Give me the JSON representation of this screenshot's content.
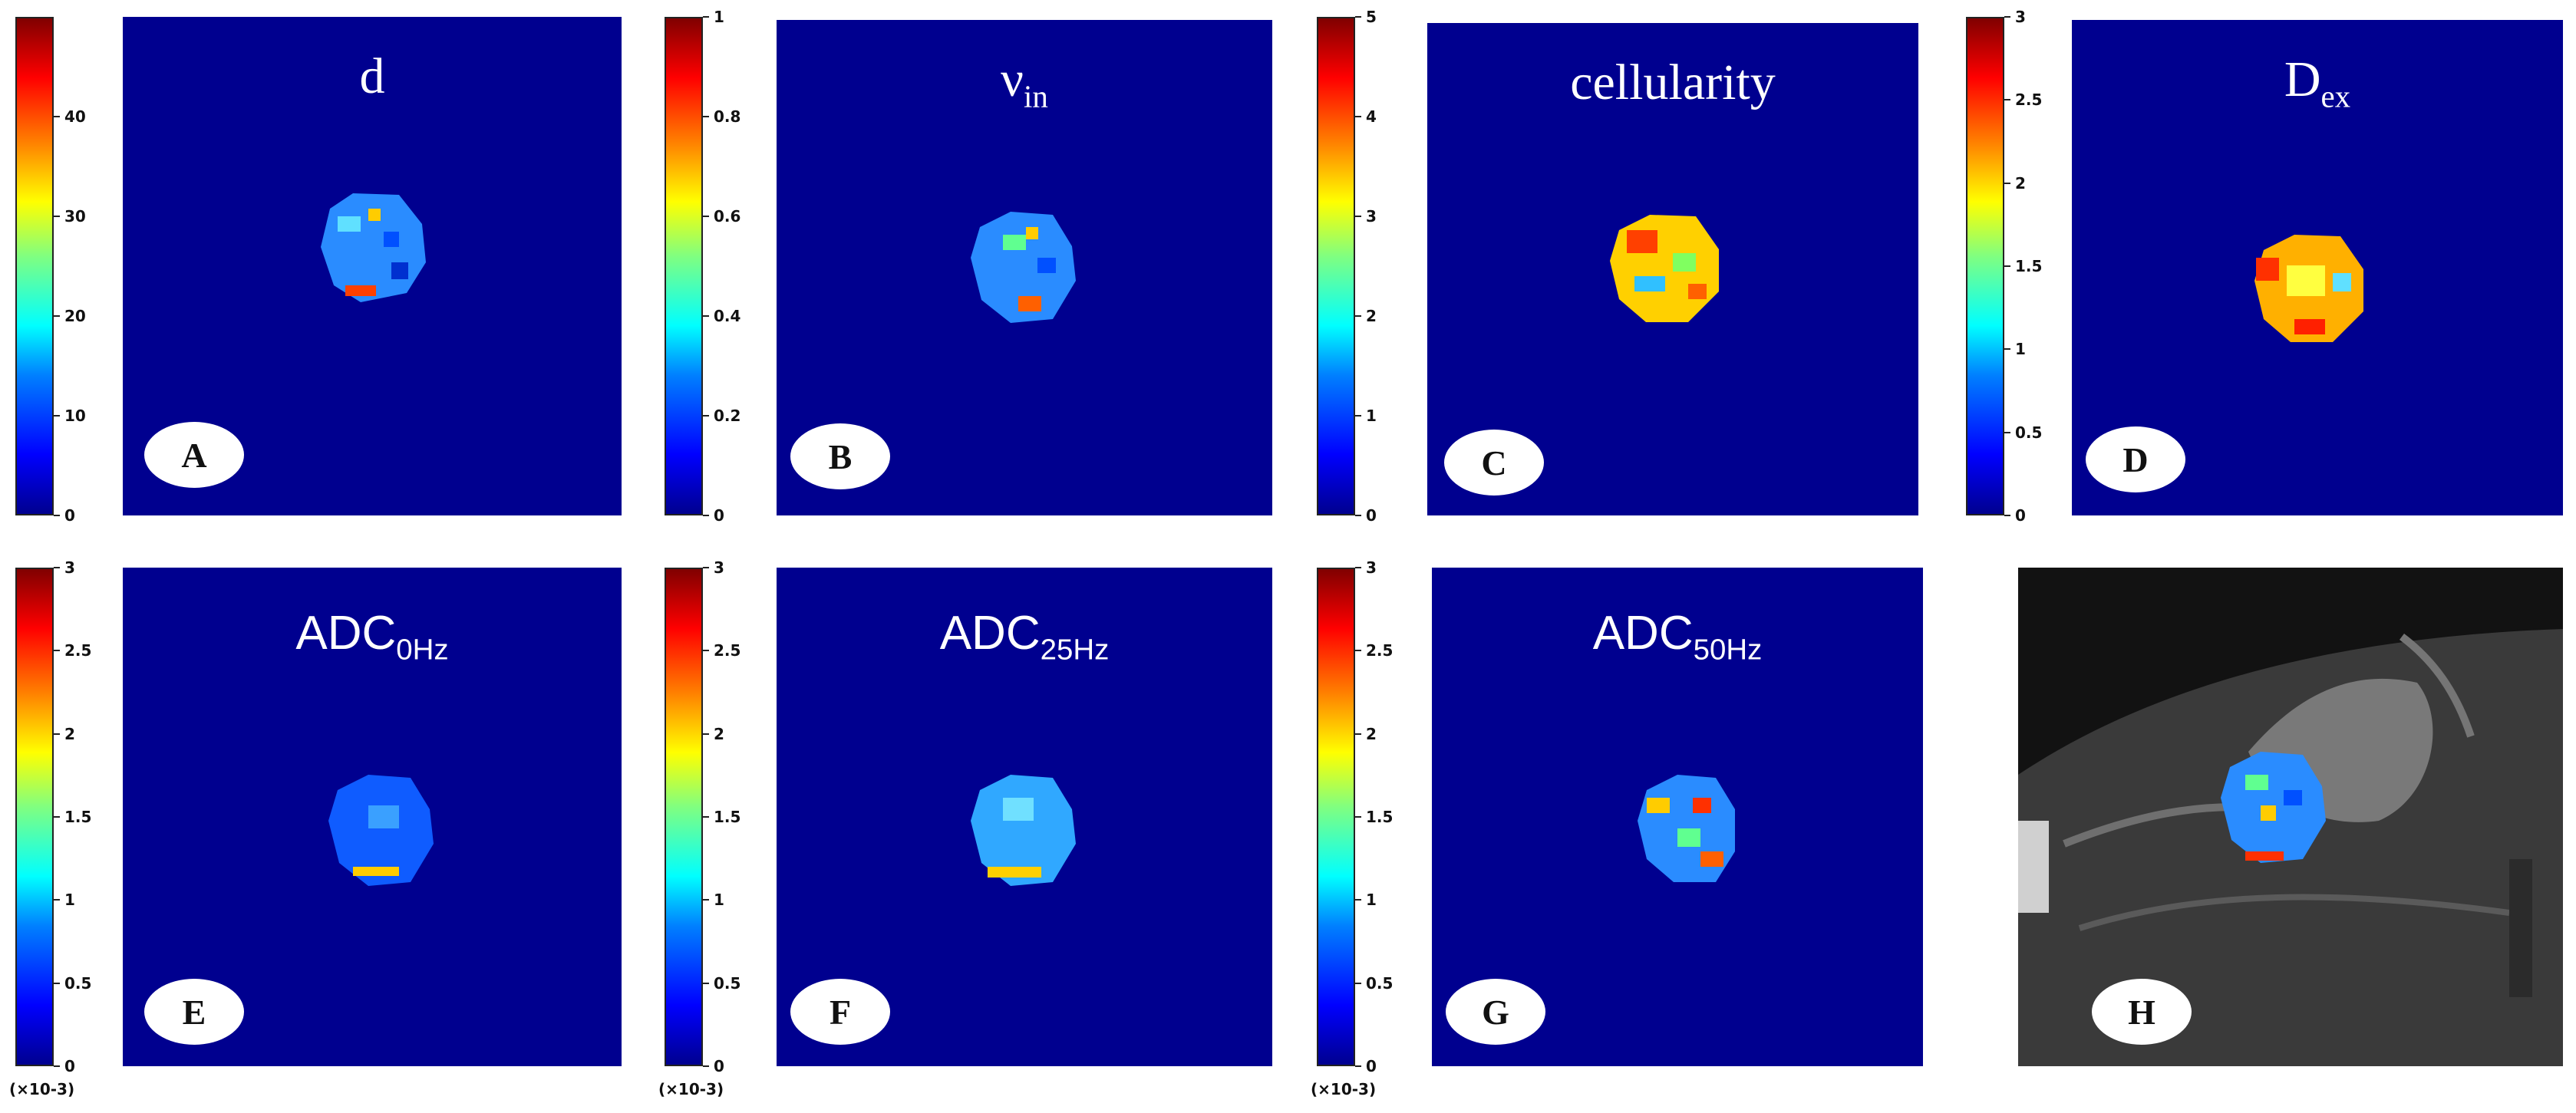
{
  "panels": [
    {
      "id": "A",
      "letter": "A",
      "title": "d",
      "sub": "",
      "style": "serif",
      "scale": {
        "ticks": [
          "0",
          "10",
          "20",
          "30",
          "40"
        ],
        "fracs": [
          0,
          0.2,
          0.4,
          0.6,
          0.8
        ],
        "unit": ""
      }
    },
    {
      "id": "B",
      "letter": "B",
      "title": "ν",
      "sub": "in",
      "style": "serif",
      "scale": {
        "ticks": [
          "0",
          "0.2",
          "0.4",
          "0.6",
          "0.8",
          "1"
        ],
        "fracs": [
          0,
          0.2,
          0.4,
          0.6,
          0.8,
          1
        ],
        "unit": ""
      }
    },
    {
      "id": "C",
      "letter": "C",
      "title": "cellularity",
      "sub": "",
      "style": "serif",
      "scale": {
        "ticks": [
          "0",
          "1",
          "2",
          "3",
          "4",
          "5"
        ],
        "fracs": [
          0,
          0.2,
          0.4,
          0.6,
          0.8,
          1
        ],
        "unit": ""
      }
    },
    {
      "id": "D",
      "letter": "D",
      "title": "D",
      "sub": "ex",
      "style": "serif",
      "scale": {
        "ticks": [
          "0",
          "0.5",
          "1",
          "1.5",
          "2",
          "2.5",
          "3"
        ],
        "fracs": [
          0,
          0.1667,
          0.3333,
          0.5,
          0.6667,
          0.8333,
          1
        ],
        "unit": ""
      }
    },
    {
      "id": "E",
      "letter": "E",
      "title": "ADC",
      "sub": "0Hz",
      "style": "sans",
      "scale": {
        "ticks": [
          "0",
          "0.5",
          "1",
          "1.5",
          "2",
          "2.5",
          "3"
        ],
        "fracs": [
          0,
          0.1667,
          0.3333,
          0.5,
          0.6667,
          0.8333,
          1
        ],
        "unit": "(×10-3)"
      }
    },
    {
      "id": "F",
      "letter": "F",
      "title": "ADC",
      "sub": "25Hz",
      "style": "sans",
      "scale": {
        "ticks": [
          "0",
          "0.5",
          "1",
          "1.5",
          "2",
          "2.5",
          "3"
        ],
        "fracs": [
          0,
          0.1667,
          0.3333,
          0.5,
          0.6667,
          0.8333,
          1
        ],
        "unit": "(×10-3)"
      }
    },
    {
      "id": "G",
      "letter": "G",
      "title": "ADC",
      "sub": "50Hz",
      "style": "sans",
      "scale": {
        "ticks": [
          "0",
          "0.5",
          "1",
          "1.5",
          "2",
          "2.5",
          "3"
        ],
        "fracs": [
          0,
          0.1667,
          0.3333,
          0.5,
          0.6667,
          0.8333,
          1
        ],
        "unit": "(×10-3)"
      }
    },
    {
      "id": "H",
      "letter": "H",
      "title": "",
      "sub": "",
      "style": "mri",
      "scale": null
    }
  ]
}
